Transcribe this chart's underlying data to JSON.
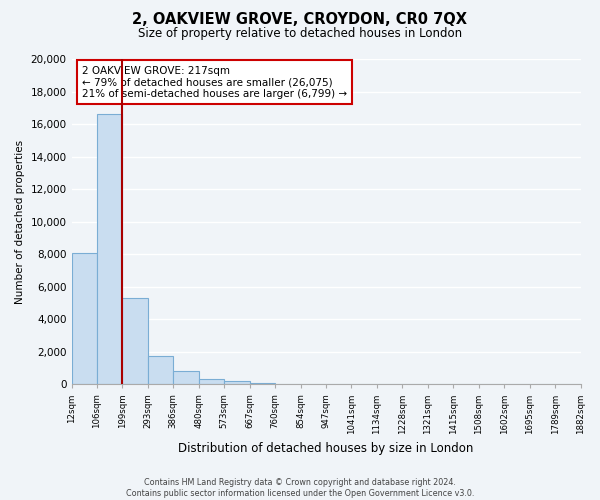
{
  "title": "2, OAKVIEW GROVE, CROYDON, CR0 7QX",
  "subtitle": "Size of property relative to detached houses in London",
  "xlabel": "Distribution of detached houses by size in London",
  "ylabel": "Number of detached properties",
  "bar_values": [
    8100,
    16600,
    5300,
    1750,
    800,
    300,
    200,
    100,
    0,
    0,
    0,
    0,
    0,
    0,
    0,
    0,
    0,
    0,
    0,
    0
  ],
  "bin_labels": [
    "12sqm",
    "106sqm",
    "199sqm",
    "293sqm",
    "386sqm",
    "480sqm",
    "573sqm",
    "667sqm",
    "760sqm",
    "854sqm",
    "947sqm",
    "1041sqm",
    "1134sqm",
    "1228sqm",
    "1321sqm",
    "1415sqm",
    "1508sqm",
    "1602sqm",
    "1695sqm",
    "1789sqm",
    "1882sqm"
  ],
  "bar_color": "#c9ddf0",
  "bar_edge_color": "#7aadd4",
  "property_line_color": "#aa0000",
  "annotation_title": "2 OAKVIEW GROVE: 217sqm",
  "annotation_line1": "← 79% of detached houses are smaller (26,075)",
  "annotation_line2": "21% of semi-detached houses are larger (6,799) →",
  "annotation_box_color": "#ffffff",
  "annotation_box_edge": "#cc0000",
  "ylim": [
    0,
    20000
  ],
  "yticks": [
    0,
    2000,
    4000,
    6000,
    8000,
    10000,
    12000,
    14000,
    16000,
    18000,
    20000
  ],
  "footer_line1": "Contains HM Land Registry data © Crown copyright and database right 2024.",
  "footer_line2": "Contains public sector information licensed under the Open Government Licence v3.0.",
  "background_color": "#f0f4f8",
  "grid_color": "#d8e4f0"
}
